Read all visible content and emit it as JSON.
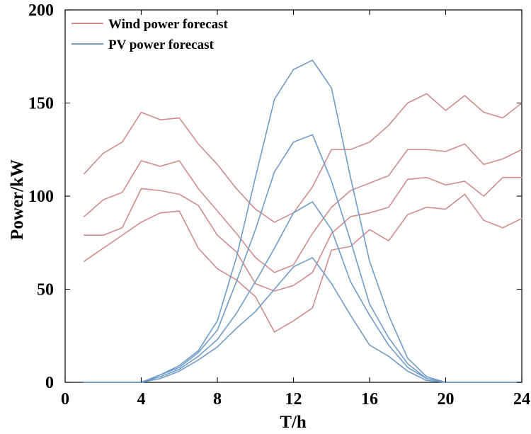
{
  "chart_data": {
    "type": "line",
    "title": "",
    "xlabel": "T/h",
    "ylabel": "Power/kW",
    "xlim": [
      0,
      24
    ],
    "ylim": [
      0,
      200
    ],
    "xticks": [
      0,
      4,
      8,
      12,
      16,
      20,
      24
    ],
    "yticks": [
      0,
      50,
      100,
      150,
      200
    ],
    "grid": false,
    "legend_position": "top-left",
    "x": [
      1,
      2,
      3,
      4,
      5,
      6,
      7,
      8,
      9,
      10,
      11,
      12,
      13,
      14,
      15,
      16,
      17,
      18,
      19,
      20,
      21,
      22,
      23,
      24
    ],
    "groups": [
      {
        "name": "Wind power forecast",
        "color": "#cf8c8c",
        "series": [
          {
            "name": "Wind power forecast 1",
            "values": [
              112,
              123,
              129,
              145,
              141,
              142,
              128,
              117,
              104,
              93,
              86,
              91,
              105,
              125,
              125,
              129,
              138,
              150,
              155,
              146,
              154,
              145,
              142,
              150
            ]
          },
          {
            "name": "Wind power forecast 2",
            "values": [
              89,
              98,
              102,
              119,
              116,
              119,
              104,
              92,
              80,
              67,
              59,
              63,
              80,
              94,
              103,
              107,
              111,
              125,
              125,
              124,
              128,
              117,
              120,
              125
            ]
          },
          {
            "name": "Wind power forecast 3",
            "values": [
              79,
              79,
              83,
              104,
              103,
              101,
              95,
              79,
              70,
              53,
              49,
              52,
              59,
              80,
              89,
              91,
              94,
              109,
              110,
              106,
              108,
              100,
              110,
              110
            ]
          },
          {
            "name": "Wind power forecast 4",
            "values": [
              65,
              72,
              79,
              86,
              91,
              92,
              72,
              61,
              55,
              46,
              27,
              33,
              40,
              71,
              73,
              82,
              76,
              90,
              94,
              93,
              101,
              87,
              83,
              88
            ]
          }
        ]
      },
      {
        "name": "PV power forecast",
        "color": "#6f9cc7",
        "series": [
          {
            "name": "PV power forecast 1",
            "values": [
              0,
              0,
              0,
              0,
              4,
              9,
              17,
              33,
              67,
              110,
              152,
              168,
              173,
              158,
              110,
              65,
              36,
              13,
              3,
              0,
              0,
              0,
              0,
              0
            ]
          },
          {
            "name": "PV power forecast 2",
            "values": [
              0,
              0,
              0,
              0,
              4,
              8,
              16,
              28,
              54,
              82,
              113,
              129,
              133,
              108,
              76,
              42,
              24,
              10,
              2,
              0,
              0,
              0,
              0,
              0
            ]
          },
          {
            "name": "PV power forecast 3",
            "values": [
              0,
              0,
              0,
              0,
              3,
              7,
              14,
              23,
              37,
              54,
              72,
              91,
              97,
              82,
              54,
              36,
              20,
              8,
              2,
              0,
              0,
              0,
              0,
              0
            ]
          },
          {
            "name": "PV power forecast 4",
            "values": [
              0,
              0,
              0,
              0,
              2,
              6,
              12,
              19,
              29,
              38,
              50,
              62,
              67,
              53,
              36,
              20,
              14,
              6,
              1,
              0,
              0,
              0,
              0,
              0
            ]
          }
        ]
      }
    ]
  }
}
